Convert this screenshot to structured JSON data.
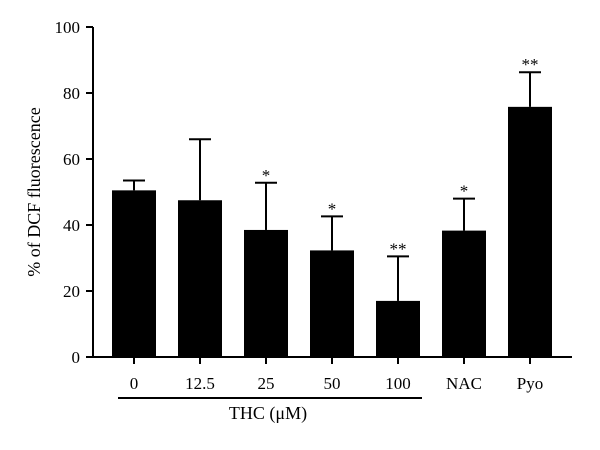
{
  "chart_data": {
    "type": "bar",
    "categories": [
      "0",
      "12.5",
      "25",
      "50",
      "100",
      "NAC",
      "Pyo"
    ],
    "values": [
      50.5,
      47.5,
      38.5,
      32.3,
      17.0,
      38.3,
      75.8
    ],
    "errors": [
      3.0,
      18.5,
      14.3,
      10.3,
      13.5,
      9.7,
      10.5
    ],
    "significance": [
      "",
      "",
      "*",
      "*",
      "**",
      "*",
      "**"
    ],
    "ylabel": "% of DCF fluorescence",
    "group_label": "THC (μM)",
    "group_span": [
      "0",
      "100"
    ],
    "ylim": [
      0,
      100
    ],
    "yticks": [
      0,
      20,
      40,
      60,
      80,
      100
    ],
    "bar_color": "#000000",
    "grid": false
  }
}
